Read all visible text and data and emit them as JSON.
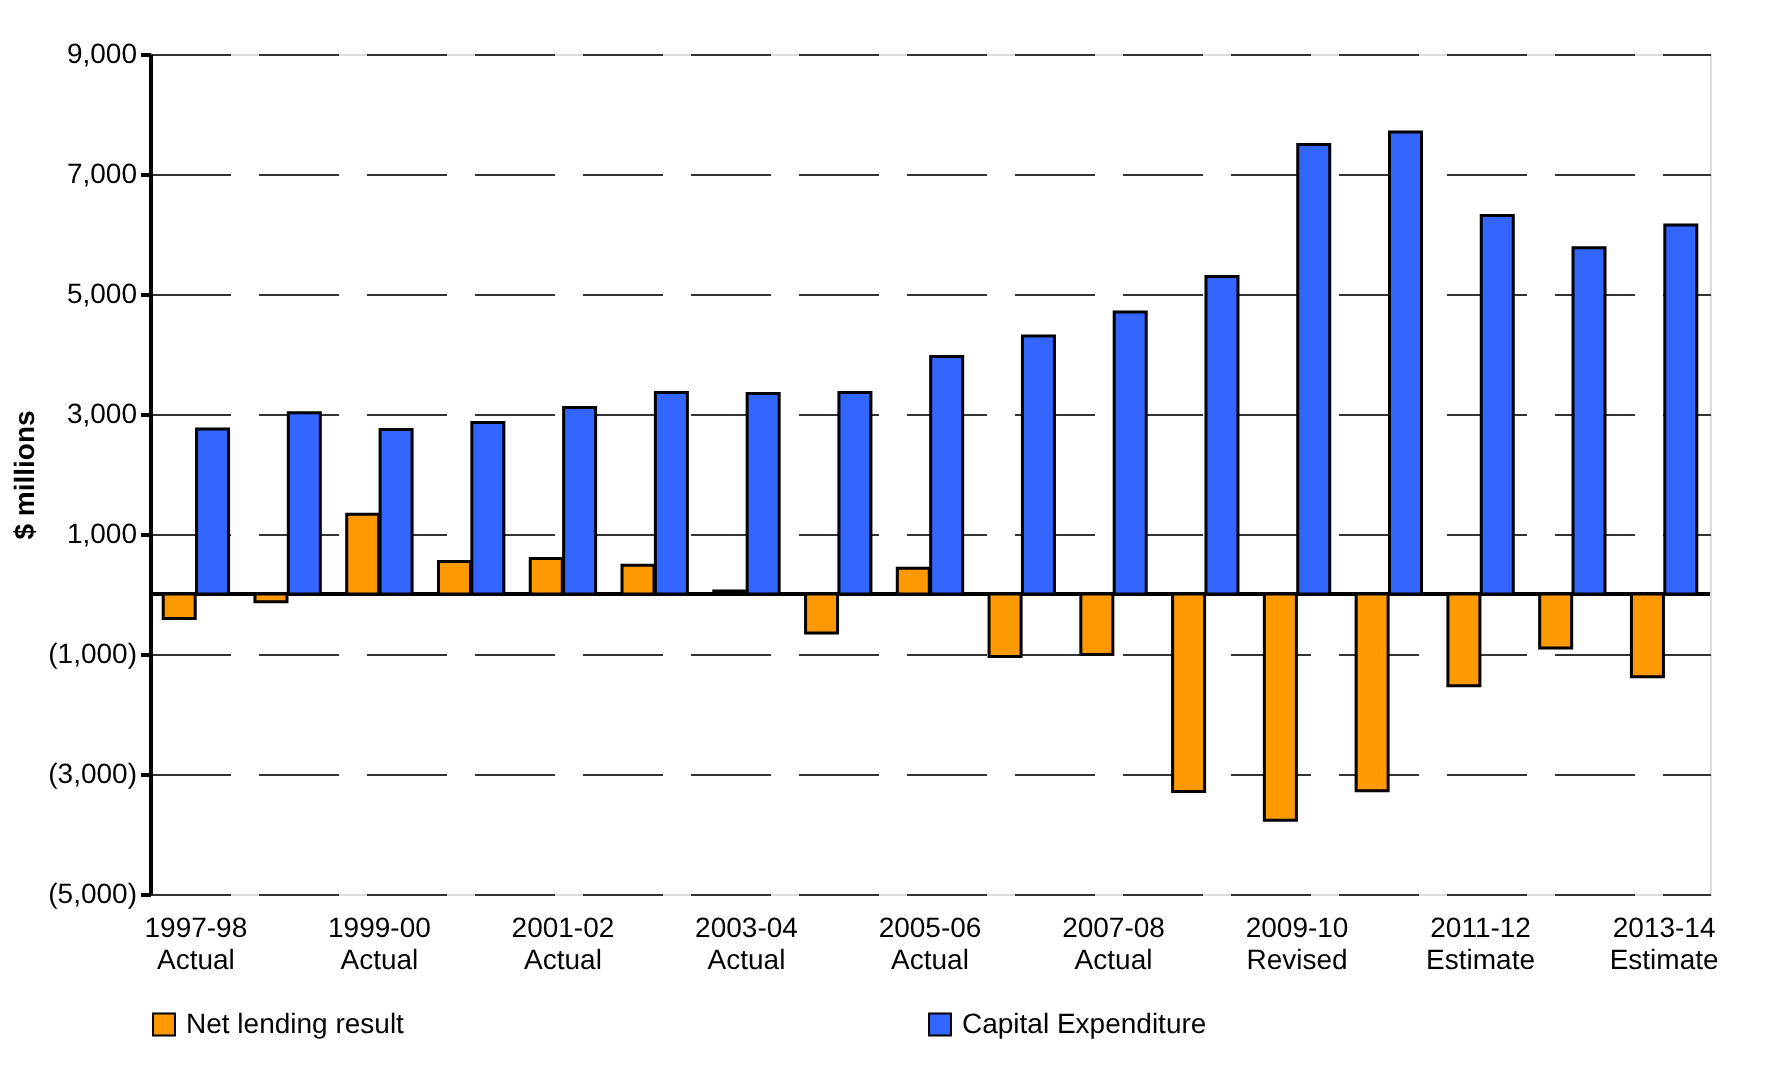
{
  "chart_data": {
    "type": "bar",
    "ylabel": "$ millions",
    "categories": [
      "1997-98 Actual",
      null,
      "1999-00 Actual",
      null,
      "2001-02 Actual",
      null,
      "2003-04 Actual",
      null,
      "2005-06 Actual",
      null,
      "2007-08 Actual",
      null,
      "2009-10 Revised",
      null,
      "2011-12 Estimate",
      null,
      "2013-14 Estimate"
    ],
    "series": [
      {
        "name": "Net lending result",
        "color": "#ff9900",
        "values": [
          -410,
          -130,
          1330,
          540,
          590,
          480,
          50,
          -650,
          430,
          -1040,
          -1010,
          -3290,
          -3770,
          -3280,
          -1530,
          -900,
          -1380
        ]
      },
      {
        "name": "Capital Expenditure",
        "color": "#3366ff",
        "values": [
          2750,
          3020,
          2740,
          2860,
          3110,
          3360,
          3340,
          3360,
          3960,
          4300,
          4700,
          5290,
          7490,
          7700,
          6310,
          5770,
          6150
        ]
      }
    ],
    "ylim": [
      -5000,
      9000
    ],
    "yticks": [
      {
        "value": 9000,
        "label": "9,000"
      },
      {
        "value": 7000,
        "label": "7,000"
      },
      {
        "value": 5000,
        "label": "5,000"
      },
      {
        "value": 3000,
        "label": "3,000"
      },
      {
        "value": 1000,
        "label": "1,000"
      },
      {
        "value": -1000,
        "label": "(1,000)"
      },
      {
        "value": -3000,
        "label": "(3,000)"
      },
      {
        "value": -5000,
        "label": "(5,000)"
      }
    ],
    "grid": "y",
    "legend": "bottom"
  }
}
